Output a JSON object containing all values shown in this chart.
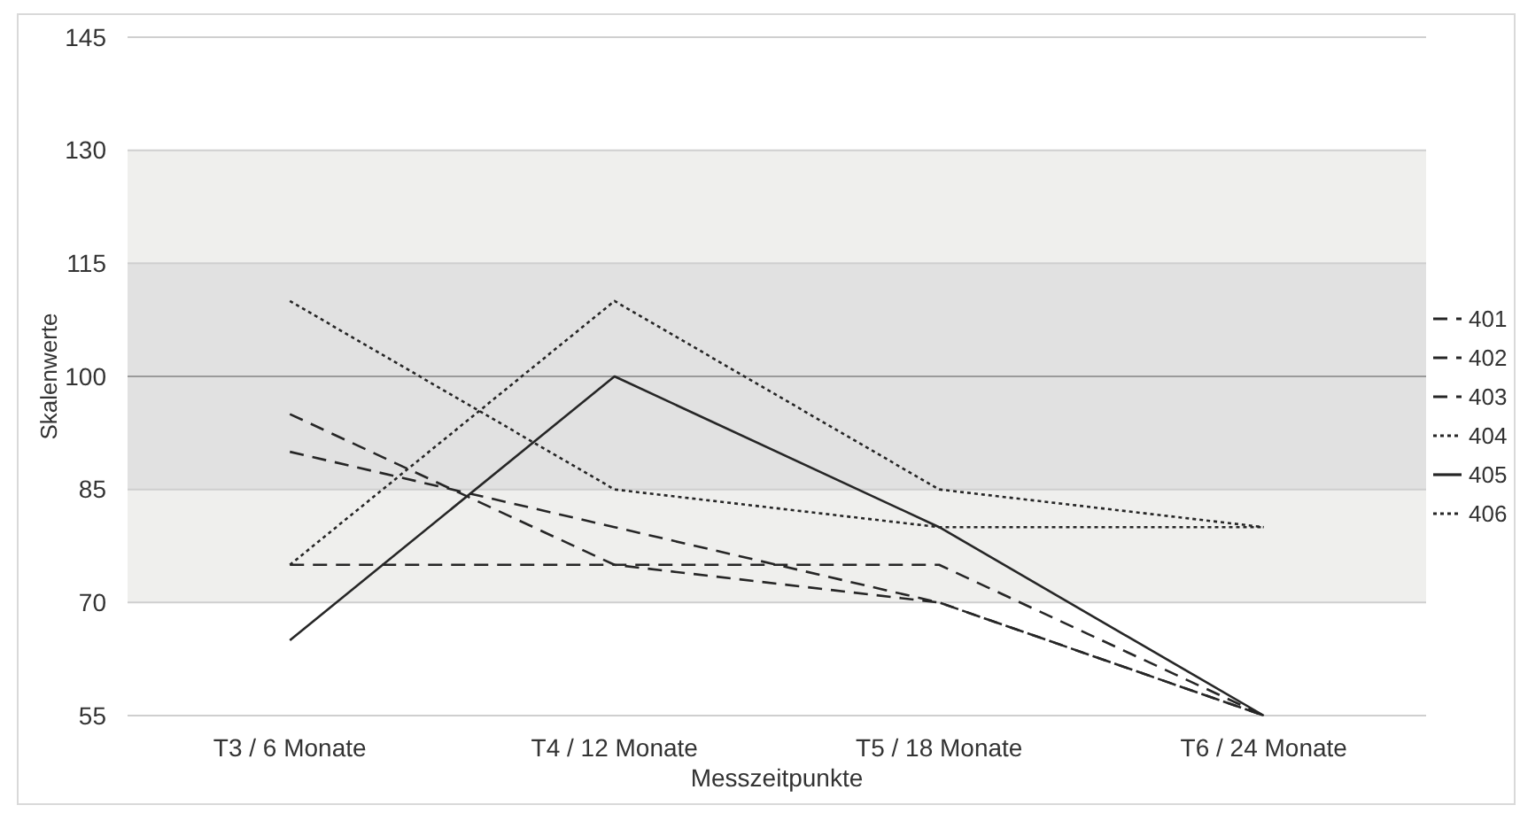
{
  "chart_data": {
    "type": "line",
    "xlabel": "Messzeitpunkte",
    "ylabel": "Skalenwerte",
    "categories": [
      "T3 / 6 Monate",
      "T4 / 12 Monate",
      "T5 / 18 Monate",
      "T6 / 24 Monate"
    ],
    "ylim": [
      55,
      145
    ],
    "yticks": [
      55,
      70,
      85,
      100,
      115,
      130,
      145
    ],
    "grid": "y",
    "legend": "right",
    "bands": [
      {
        "axis": "y",
        "from": 70,
        "to": 85,
        "color": "#efefed"
      },
      {
        "axis": "y",
        "from": 85,
        "to": 115,
        "color": "#e1e1e1"
      },
      {
        "axis": "y",
        "from": 115,
        "to": 130,
        "color": "#efefed"
      }
    ],
    "ref_lines": [
      {
        "axis": "y",
        "value": 100,
        "color": "#9a9a9a"
      }
    ],
    "series": [
      {
        "name": "401",
        "color": "#262626",
        "line_style": "dashed",
        "values": [
          75,
          75,
          75,
          55
        ]
      },
      {
        "name": "402",
        "color": "#262626",
        "line_style": "dashed",
        "values": [
          90,
          80,
          70,
          55
        ]
      },
      {
        "name": "403",
        "color": "#262626",
        "line_style": "dashed",
        "values": [
          95,
          75,
          70,
          55
        ]
      },
      {
        "name": "404",
        "color": "#262626",
        "line_style": "dotted",
        "values": [
          75,
          110,
          85,
          80
        ]
      },
      {
        "name": "405",
        "color": "#262626",
        "line_style": "solid",
        "values": [
          65,
          100,
          80,
          55
        ]
      },
      {
        "name": "406",
        "color": "#262626",
        "line_style": "dotted",
        "values": [
          110,
          85,
          80,
          80
        ]
      }
    ]
  }
}
